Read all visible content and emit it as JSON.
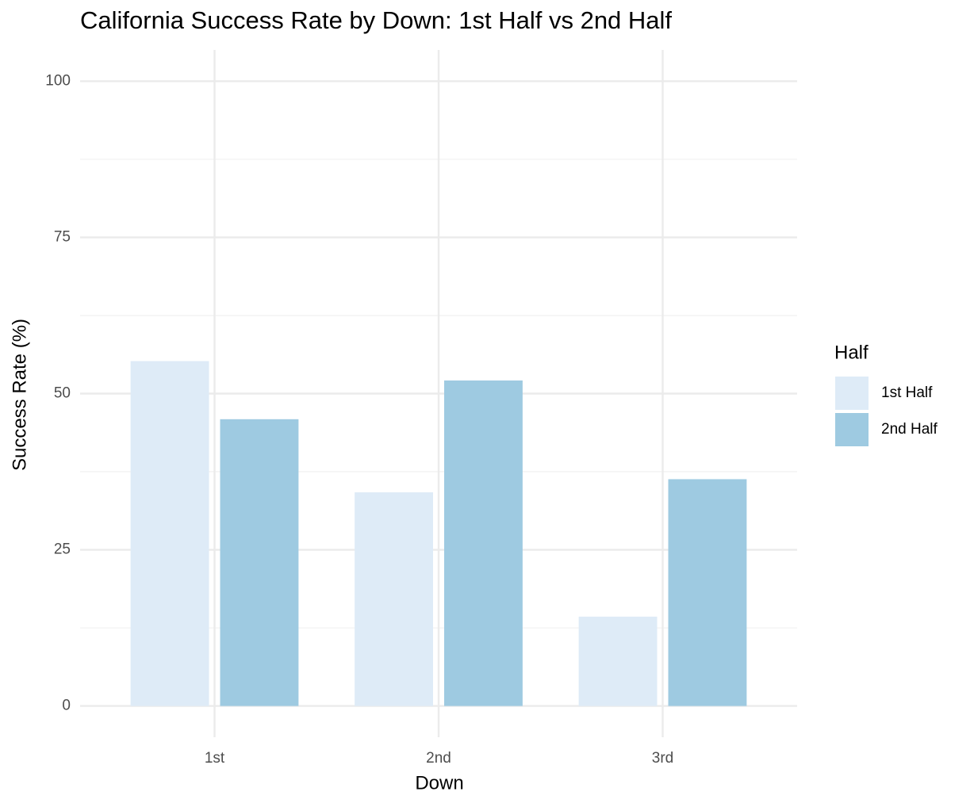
{
  "chart_data": {
    "type": "bar",
    "title": "California Success Rate by Down: 1st Half vs 2nd Half",
    "x_label": "Down",
    "y_label": "Success Rate (%)",
    "legend_title": "Half",
    "categories": [
      "1st",
      "2nd",
      "3rd"
    ],
    "series": [
      {
        "name": "1st Half",
        "color": "#deebf7",
        "values": [
          55.2,
          34.2,
          14.3
        ]
      },
      {
        "name": "2nd Half",
        "color": "#9ecae1",
        "values": [
          45.9,
          52.1,
          36.3
        ]
      }
    ],
    "ylim": [
      -5,
      105
    ],
    "yticks": [
      0,
      25,
      50,
      75,
      100
    ],
    "grid": true,
    "legend_position": "right"
  }
}
